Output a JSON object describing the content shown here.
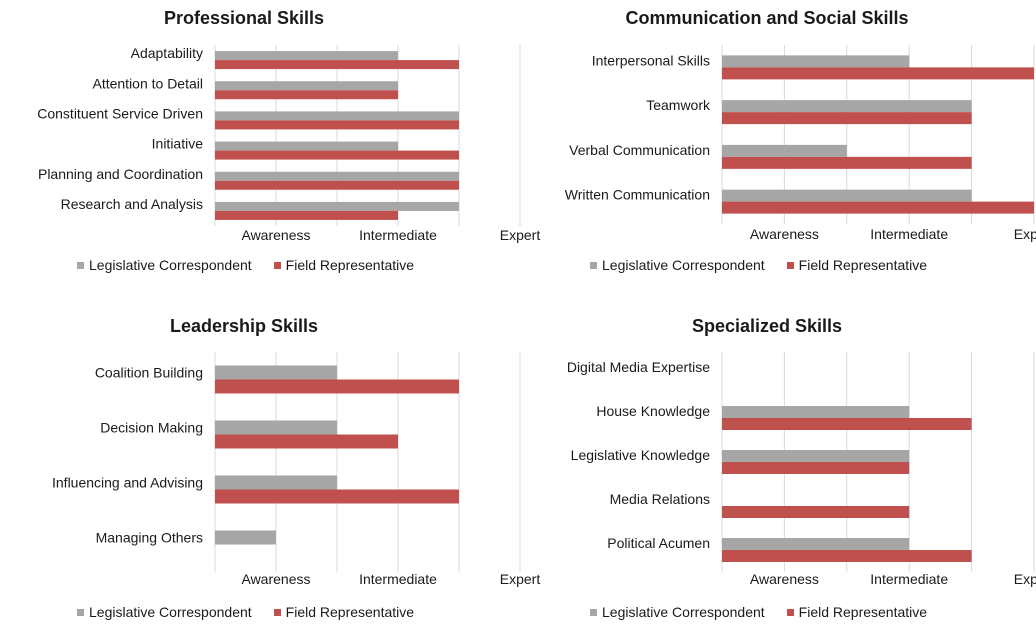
{
  "colors": {
    "legislative": "#a6a6a6",
    "field": "#c0504d",
    "grid": "#d9d9d9"
  },
  "legend": {
    "series_a": "Legislative Correspondent",
    "series_b": "Field Representative"
  },
  "chart_data": [
    {
      "type": "bar",
      "orientation": "horizontal",
      "title": "Professional Skills",
      "categories": [
        "Adaptability",
        "Attention to Detail",
        "Constituent Service Driven",
        "Initiative",
        "Planning and Coordination",
        "Research and Analysis"
      ],
      "x_ticks": [
        "Awareness",
        "Intermediate",
        "Expert"
      ],
      "xlim": [
        0,
        5
      ],
      "series": [
        {
          "name": "Legislative Correspondent",
          "values": [
            3,
            3,
            4,
            3,
            4,
            4
          ]
        },
        {
          "name": "Field Representative",
          "values": [
            4,
            3,
            4,
            4,
            4,
            3
          ]
        }
      ],
      "grid": true,
      "legend": "bottom"
    },
    {
      "type": "bar",
      "orientation": "horizontal",
      "title": "Communication and Social Skills",
      "categories": [
        "Interpersonal Skills",
        "Teamwork",
        "Verbal Communication",
        "Written Communication"
      ],
      "x_ticks": [
        "Awareness",
        "Intermediate",
        "Expert"
      ],
      "xlim": [
        0,
        5
      ],
      "series": [
        {
          "name": "Legislative Correspondent",
          "values": [
            3,
            4,
            2,
            4
          ]
        },
        {
          "name": "Field Representative",
          "values": [
            5,
            4,
            4,
            5
          ]
        }
      ],
      "grid": true,
      "legend": "bottom"
    },
    {
      "type": "bar",
      "orientation": "horizontal",
      "title": "Leadership Skills",
      "categories": [
        "Coalition Building",
        "Decision Making",
        "Influencing and Advising",
        "Managing Others"
      ],
      "x_ticks": [
        "Awareness",
        "Intermediate",
        "Expert"
      ],
      "xlim": [
        0,
        5
      ],
      "series": [
        {
          "name": "Legislative Correspondent",
          "values": [
            2,
            2,
            2,
            1
          ]
        },
        {
          "name": "Field Representative",
          "values": [
            4,
            3,
            4,
            0
          ]
        }
      ],
      "grid": true,
      "legend": "bottom"
    },
    {
      "type": "bar",
      "orientation": "horizontal",
      "title": "Specialized Skills",
      "categories": [
        "Digital Media Expertise",
        "House Knowledge",
        "Legislative Knowledge",
        "Media Relations",
        "Political Acumen"
      ],
      "x_ticks": [
        "Awareness",
        "Intermediate",
        "Expert"
      ],
      "xlim": [
        0,
        5
      ],
      "series": [
        {
          "name": "Legislative Correspondent",
          "values": [
            0,
            3,
            3,
            0,
            3
          ]
        },
        {
          "name": "Field Representative",
          "values": [
            0,
            4,
            3,
            3,
            4
          ]
        }
      ],
      "grid": true,
      "legend": "bottom"
    }
  ]
}
